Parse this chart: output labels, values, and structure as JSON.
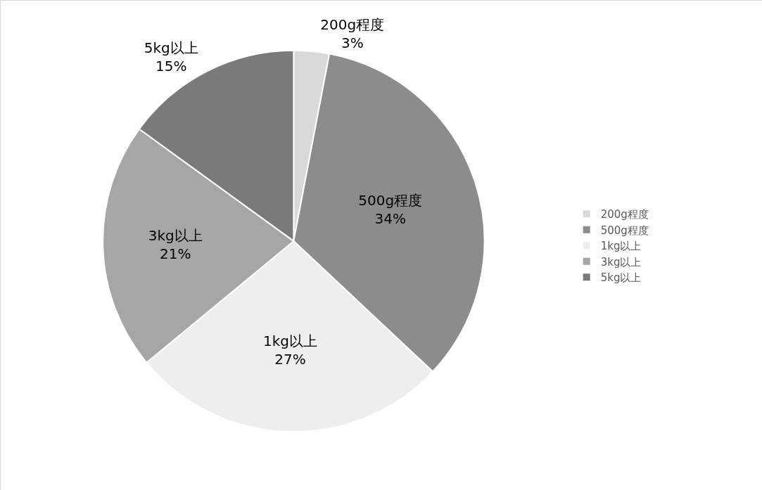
{
  "chart_data": {
    "type": "pie",
    "categories": [
      "200g程度",
      "500g程度",
      "1kg以上",
      "3kg以上",
      "5kg以上"
    ],
    "values": [
      3,
      34,
      27,
      21,
      15
    ],
    "value_labels": [
      "3%",
      "34%",
      "27%",
      "21%",
      "15%"
    ],
    "colors": [
      "#d9d9d9",
      "#8c8c8c",
      "#eeeeee",
      "#a6a6a6",
      "#7a7a7a"
    ],
    "legend": "right"
  }
}
